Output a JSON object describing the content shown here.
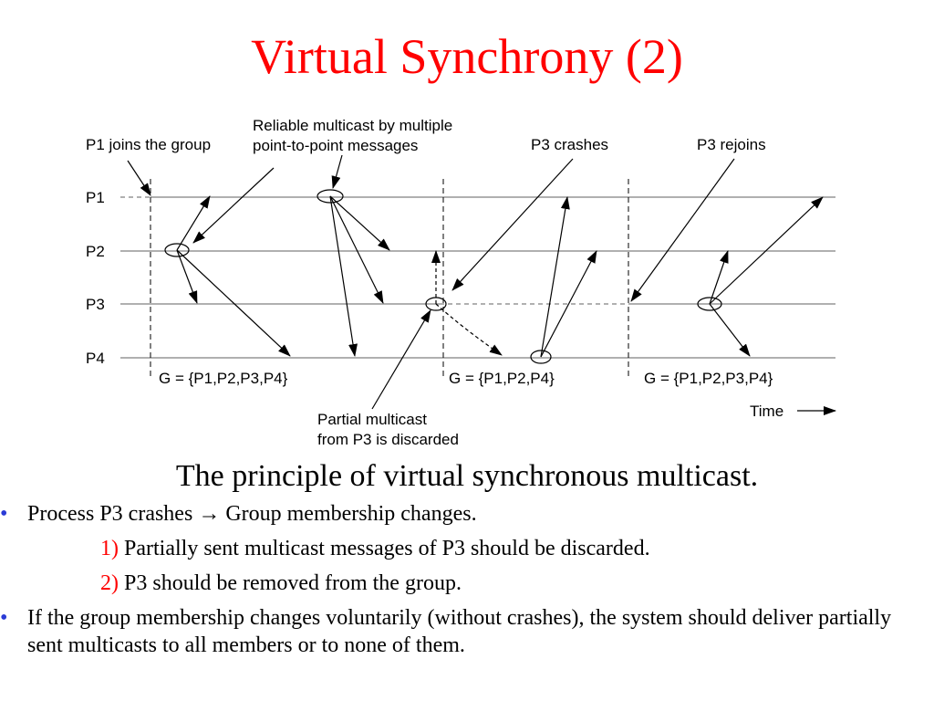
{
  "slide": {
    "title": "Virtual Synchrony (2)",
    "caption": "The principle of virtual synchronous multicast."
  },
  "diagram": {
    "labels": {
      "p1_joins": "P1 joins the group",
      "reliable_line1": "Reliable multicast by multiple",
      "reliable_line2": "point-to-point messages",
      "p3_crashes": "P3 crashes",
      "p3_rejoins": "P3 rejoins",
      "partial_line1": "Partial multicast",
      "partial_line2": "from P3 is discarded",
      "time": "Time"
    },
    "processes": [
      "P1",
      "P2",
      "P3",
      "P4"
    ],
    "groups": [
      "G = {P1,P2,P3,P4}",
      "G = {P1,P2,P4}",
      "G = {P1,P2,P3,P4}"
    ]
  },
  "bullets": [
    {
      "marker": "•",
      "text_before": "Process P3 crashes ",
      "arrow": "→",
      "text_after": " Group membership changes.",
      "subs": [
        {
          "num": "1)",
          "text": " Partially sent multicast messages of P3 should be discarded."
        },
        {
          "num": "2)",
          "text": " P3 should be removed from the group."
        }
      ]
    },
    {
      "marker": "•",
      "text": "If the group membership changes voluntarily (without crashes), the system should deliver partially sent multicasts to all members or to none of them."
    }
  ],
  "colors": {
    "title": "#ff0000",
    "bullet": "#2a3bd6",
    "timeline": "#808080"
  }
}
